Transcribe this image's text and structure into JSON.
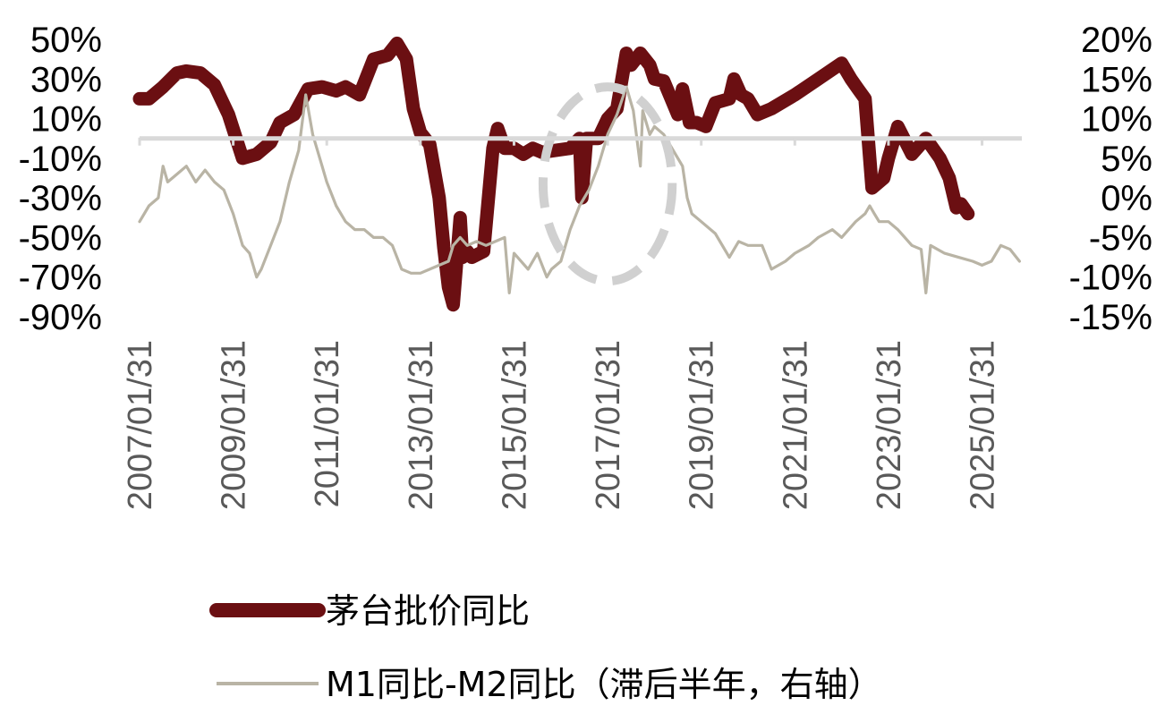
{
  "chart_data": {
    "type": "line",
    "left_axis": {
      "min": -90,
      "max": 50,
      "step": 20,
      "ticks": [
        "50%",
        "30%",
        "10%",
        "-10%",
        "-30%",
        "-50%",
        "-70%",
        "-90%"
      ]
    },
    "right_axis": {
      "min": -15,
      "max": 20,
      "step": 5,
      "ticks": [
        "20%",
        "15%",
        "10%",
        "5%",
        "0%",
        "-5%",
        "-10%",
        "-15%"
      ]
    },
    "x_ticks": [
      "2007/01/31",
      "2009/01/31",
      "2011/01/31",
      "2013/01/31",
      "2015/01/31",
      "2017/01/31",
      "2019/01/31",
      "2021/01/31",
      "2023/01/31",
      "2025/01/31"
    ],
    "x_range": [
      2007.0,
      2025.85
    ],
    "zero_line": {
      "axis": "left",
      "value": 0,
      "color": "#d9d9d9"
    },
    "highlight_ellipse": {
      "x_center": 2017.0,
      "y_center_left_axis": -23,
      "x_half_width": 1.38,
      "y_half_height_left_axis": 49,
      "color": "#d0d0d0",
      "style": "dashed"
    },
    "series": [
      {
        "name": "茅台批价同比",
        "axis": "left",
        "color": "#6b0f12",
        "style": "thick",
        "points": [
          [
            2007.0,
            20
          ],
          [
            2007.2,
            20
          ],
          [
            2007.5,
            26
          ],
          [
            2007.8,
            33
          ],
          [
            2008.0,
            34
          ],
          [
            2008.3,
            33
          ],
          [
            2008.6,
            27
          ],
          [
            2008.9,
            12
          ],
          [
            2009.2,
            -10
          ],
          [
            2009.5,
            -8
          ],
          [
            2009.8,
            -2
          ],
          [
            2010.0,
            8
          ],
          [
            2010.3,
            12
          ],
          [
            2010.6,
            25
          ],
          [
            2010.9,
            26
          ],
          [
            2011.2,
            24
          ],
          [
            2011.4,
            26
          ],
          [
            2011.7,
            22
          ],
          [
            2012.0,
            40
          ],
          [
            2012.3,
            42
          ],
          [
            2012.5,
            48
          ],
          [
            2012.7,
            40
          ],
          [
            2012.85,
            15
          ],
          [
            2013.0,
            3
          ],
          [
            2013.2,
            -3
          ],
          [
            2013.4,
            -30
          ],
          [
            2013.5,
            -55
          ],
          [
            2013.6,
            -75
          ],
          [
            2013.7,
            -84
          ],
          [
            2013.85,
            -40
          ],
          [
            2013.9,
            -60
          ],
          [
            2014.0,
            -57
          ],
          [
            2014.1,
            -60
          ],
          [
            2014.35,
            -57
          ],
          [
            2014.55,
            -5
          ],
          [
            2014.65,
            5
          ],
          [
            2014.8,
            -5
          ],
          [
            2015.0,
            -5
          ],
          [
            2015.2,
            -8
          ],
          [
            2015.4,
            -5
          ],
          [
            2015.6,
            -7
          ],
          [
            2016.2,
            -5
          ],
          [
            2016.4,
            0
          ],
          [
            2016.45,
            -30
          ],
          [
            2016.55,
            0
          ],
          [
            2016.8,
            0
          ],
          [
            2017.0,
            10
          ],
          [
            2017.2,
            15
          ],
          [
            2017.4,
            43
          ],
          [
            2017.5,
            37
          ],
          [
            2017.7,
            43
          ],
          [
            2017.9,
            37
          ],
          [
            2018.0,
            30
          ],
          [
            2018.2,
            29
          ],
          [
            2018.5,
            12
          ],
          [
            2018.6,
            25
          ],
          [
            2018.75,
            8
          ],
          [
            2018.9,
            8
          ],
          [
            2019.1,
            6
          ],
          [
            2019.3,
            18
          ],
          [
            2019.6,
            20
          ],
          [
            2019.7,
            30
          ],
          [
            2019.85,
            22
          ],
          [
            2020.0,
            20
          ],
          [
            2020.2,
            12
          ],
          [
            2020.5,
            15
          ],
          [
            2021.0,
            22
          ],
          [
            2021.5,
            30
          ],
          [
            2022.0,
            38
          ],
          [
            2022.2,
            30
          ],
          [
            2022.35,
            25
          ],
          [
            2022.5,
            20
          ],
          [
            2022.65,
            -25
          ],
          [
            2022.9,
            -20
          ],
          [
            2023.0,
            -10
          ],
          [
            2023.2,
            6
          ],
          [
            2023.5,
            -8
          ],
          [
            2023.8,
            0
          ],
          [
            2024.1,
            -10
          ],
          [
            2024.3,
            -20
          ],
          [
            2024.45,
            -35
          ],
          [
            2024.55,
            -33
          ],
          [
            2024.7,
            -38
          ]
        ]
      },
      {
        "name": "M1同比-M2同比（滞后半年，右轴）",
        "axis": "right",
        "color": "#b9b4a5",
        "style": "thin",
        "points": [
          [
            2007.0,
            -3
          ],
          [
            2007.2,
            -1
          ],
          [
            2007.4,
            0
          ],
          [
            2007.5,
            4
          ],
          [
            2007.6,
            2
          ],
          [
            2007.8,
            3
          ],
          [
            2008.0,
            4
          ],
          [
            2008.2,
            2
          ],
          [
            2008.4,
            3.5
          ],
          [
            2008.6,
            2
          ],
          [
            2008.8,
            1
          ],
          [
            2009.0,
            -2
          ],
          [
            2009.2,
            -6
          ],
          [
            2009.35,
            -7
          ],
          [
            2009.5,
            -10
          ],
          [
            2009.6,
            -9
          ],
          [
            2009.8,
            -6
          ],
          [
            2010.0,
            -3
          ],
          [
            2010.2,
            2
          ],
          [
            2010.4,
            6
          ],
          [
            2010.55,
            13
          ],
          [
            2010.7,
            8
          ],
          [
            2010.9,
            4
          ],
          [
            2011.0,
            2
          ],
          [
            2011.2,
            -1
          ],
          [
            2011.4,
            -3
          ],
          [
            2011.6,
            -4
          ],
          [
            2011.8,
            -4
          ],
          [
            2012.0,
            -5
          ],
          [
            2012.2,
            -5
          ],
          [
            2012.4,
            -6
          ],
          [
            2012.6,
            -9
          ],
          [
            2012.8,
            -9.5
          ],
          [
            2013.0,
            -9.5
          ],
          [
            2013.2,
            -9
          ],
          [
            2013.4,
            -8.5
          ],
          [
            2013.6,
            -8
          ],
          [
            2013.7,
            -6
          ],
          [
            2013.85,
            -5
          ],
          [
            2014.0,
            -6
          ],
          [
            2014.2,
            -5.5
          ],
          [
            2014.4,
            -6
          ],
          [
            2014.6,
            -5.5
          ],
          [
            2014.8,
            -5
          ],
          [
            2014.9,
            -12
          ],
          [
            2015.0,
            -7
          ],
          [
            2015.3,
            -9
          ],
          [
            2015.5,
            -7
          ],
          [
            2015.7,
            -10
          ],
          [
            2015.8,
            -9
          ],
          [
            2016.0,
            -8
          ],
          [
            2016.2,
            -4
          ],
          [
            2016.4,
            -1
          ],
          [
            2016.6,
            1
          ],
          [
            2016.8,
            4
          ],
          [
            2017.0,
            8
          ],
          [
            2017.2,
            10.5
          ],
          [
            2017.4,
            14
          ],
          [
            2017.55,
            11
          ],
          [
            2017.7,
            4
          ],
          [
            2017.75,
            11
          ],
          [
            2017.9,
            8
          ],
          [
            2018.0,
            9
          ],
          [
            2018.2,
            8
          ],
          [
            2018.4,
            6
          ],
          [
            2018.6,
            4
          ],
          [
            2018.7,
            0
          ],
          [
            2018.8,
            -2
          ],
          [
            2019.0,
            -3
          ],
          [
            2019.3,
            -4.5
          ],
          [
            2019.6,
            -7.5
          ],
          [
            2019.8,
            -5.5
          ],
          [
            2020.0,
            -6
          ],
          [
            2020.3,
            -6
          ],
          [
            2020.5,
            -9
          ],
          [
            2020.8,
            -8
          ],
          [
            2021.0,
            -7
          ],
          [
            2021.3,
            -6
          ],
          [
            2021.5,
            -5
          ],
          [
            2021.8,
            -4
          ],
          [
            2022.0,
            -5
          ],
          [
            2022.3,
            -3
          ],
          [
            2022.5,
            -2
          ],
          [
            2022.6,
            -1
          ],
          [
            2022.7,
            -2
          ],
          [
            2022.8,
            -3
          ],
          [
            2023.0,
            -3
          ],
          [
            2023.2,
            -4
          ],
          [
            2023.5,
            -6
          ],
          [
            2023.7,
            -6.5
          ],
          [
            2023.8,
            -12
          ],
          [
            2023.9,
            -6
          ],
          [
            2024.2,
            -7
          ],
          [
            2024.5,
            -7.5
          ],
          [
            2024.8,
            -8
          ],
          [
            2025.0,
            -8.5
          ],
          [
            2025.2,
            -8
          ],
          [
            2025.4,
            -6
          ],
          [
            2025.6,
            -6.5
          ],
          [
            2025.8,
            -8
          ]
        ]
      }
    ],
    "legend": {
      "position": "bottom"
    }
  }
}
